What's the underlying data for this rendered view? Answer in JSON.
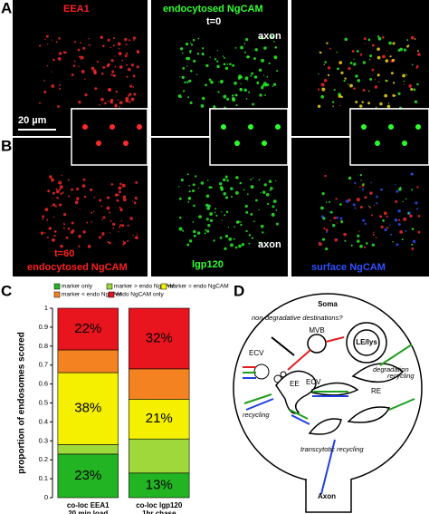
{
  "panels": {
    "A": "A",
    "B": "B",
    "C": "C",
    "D": "D"
  },
  "images": {
    "a1": {
      "label": "EEA1",
      "scale": "20 µm"
    },
    "a2": {
      "label": "endocytosed NgCAM",
      "time": "t=0",
      "axon": "axon"
    },
    "b1": {
      "time": "t=60",
      "label": "endocytosed NgCAM"
    },
    "b2": {
      "label": "lgp120",
      "axon": "axon"
    },
    "b3": {
      "label": "surface NgCAM"
    }
  },
  "chart_data": {
    "type": "stacked-bar",
    "categories": [
      "co-loc EEA1",
      "co-loc lgp120"
    ],
    "category_sublabels": [
      "20 min load",
      "1hr chase"
    ],
    "ylabel": "proportion of endosomes scored",
    "ylim": [
      0,
      1
    ],
    "yticks": [
      0,
      0.1,
      0.2,
      0.3,
      0.4,
      0.5,
      0.6,
      0.7,
      0.8,
      0.9,
      1
    ],
    "series": [
      {
        "name": "marker only",
        "color": "#22b422",
        "values": [
          0.23,
          0.13
        ],
        "value_labels": [
          "23%",
          "13%"
        ]
      },
      {
        "name": "marker > endo NgCAM",
        "color": "#9ed83a",
        "values": [
          0.05,
          0.18
        ],
        "value_labels": [
          null,
          null
        ]
      },
      {
        "name": "marker = endo NgCAM",
        "color": "#f5f000",
        "values": [
          0.38,
          0.21
        ],
        "value_labels": [
          "38%",
          "21%"
        ]
      },
      {
        "name": "marker < endo NgCAM",
        "color": "#f58220",
        "values": [
          0.12,
          0.16
        ],
        "value_labels": [
          null,
          null
        ]
      },
      {
        "name": "endo NgCAM only",
        "color": "#e8141e",
        "values": [
          0.22,
          0.32
        ],
        "value_labels": [
          "22%",
          "32%"
        ]
      }
    ]
  },
  "diagram": {
    "soma": "Soma",
    "nondeg": "non-degradative destinations?",
    "mvb": "MVB",
    "lelys": "LE/lys",
    "degradation": "degradation",
    "ecv1": "ECV",
    "ee": "EE",
    "ecv2": "ECV",
    "re": "RE",
    "recycling1": "recycling",
    "recycling2": "recycling",
    "transcytotic": "transcytotic recycling",
    "axon": "Axon"
  }
}
